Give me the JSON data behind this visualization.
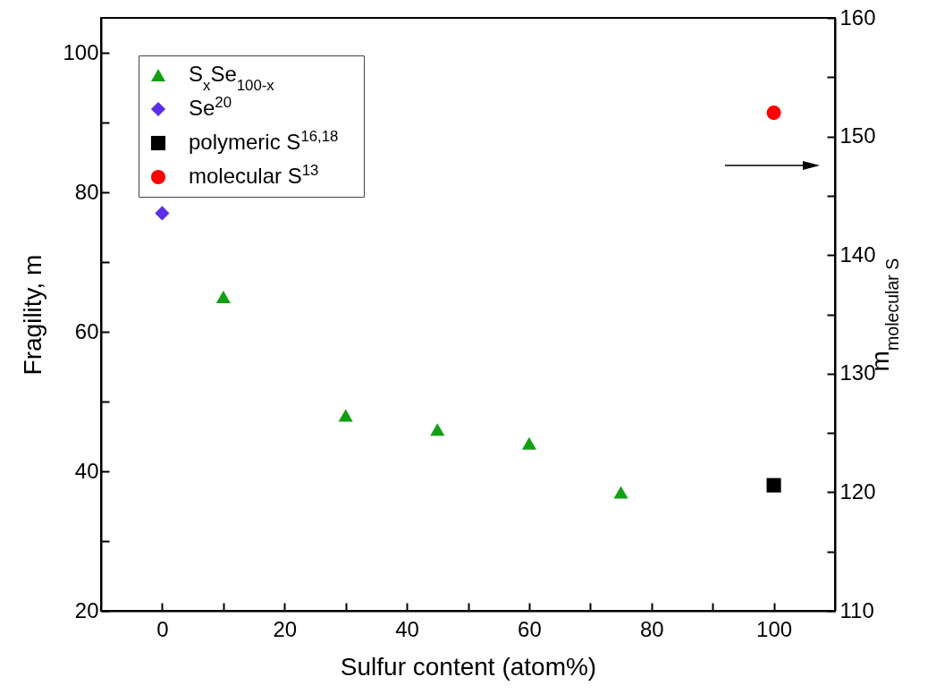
{
  "chart_data": {
    "type": "scatter",
    "xlabel": "Sulfur content (atom%)",
    "ylabel": "Fragility, m",
    "y2label": "m$_{molecular S}$",
    "xlim": [
      -10,
      110
    ],
    "xticks": [
      0,
      {
        "value": 10,
        "label": null
      },
      20,
      {
        "value": 30,
        "label": null
      },
      40,
      {
        "value": 50,
        "label": null
      },
      60,
      {
        "value": 70,
        "label": null
      },
      80,
      {
        "value": 90,
        "label": null
      },
      100
    ],
    "ylim": [
      20,
      105
    ],
    "yticks": [
      20,
      {
        "value": 30,
        "label": null
      },
      40,
      {
        "value": 50,
        "label": null
      },
      60,
      {
        "value": 70,
        "label": null
      },
      80,
      {
        "value": 90,
        "label": null
      },
      100
    ],
    "y2lim": [
      110,
      160
    ],
    "y2ticks": [
      110,
      {
        "value": 115,
        "label": null
      },
      120,
      {
        "value": 125,
        "label": null
      },
      130,
      {
        "value": 135,
        "label": null
      },
      140,
      {
        "value": 145,
        "label": null
      },
      150,
      {
        "value": 155,
        "label": null
      },
      160
    ],
    "grid": false,
    "legend": "top left",
    "series": [
      {
        "name": "S$_{x}$Se$_{100-x}$",
        "color": "#12a012",
        "marker": "triangle",
        "x": [
          10,
          30,
          45,
          60,
          75
        ],
        "values": [
          65,
          48,
          46,
          44,
          37
        ]
      },
      {
        "name": "Se$^{20}$",
        "color": "#5b2fe8",
        "marker": "diamond",
        "x": [
          0
        ],
        "values": [
          77
        ]
      },
      {
        "name": "polymeric S$^{16,18}$",
        "color": "#000000",
        "marker": "square",
        "x": [
          100
        ],
        "values": [
          38
        ]
      },
      {
        "name": "molecular S$^{13}$",
        "color": "#ff0000",
        "marker": "circle",
        "axis": "y2",
        "x": [
          100
        ],
        "values": [
          152
        ]
      }
    ]
  }
}
